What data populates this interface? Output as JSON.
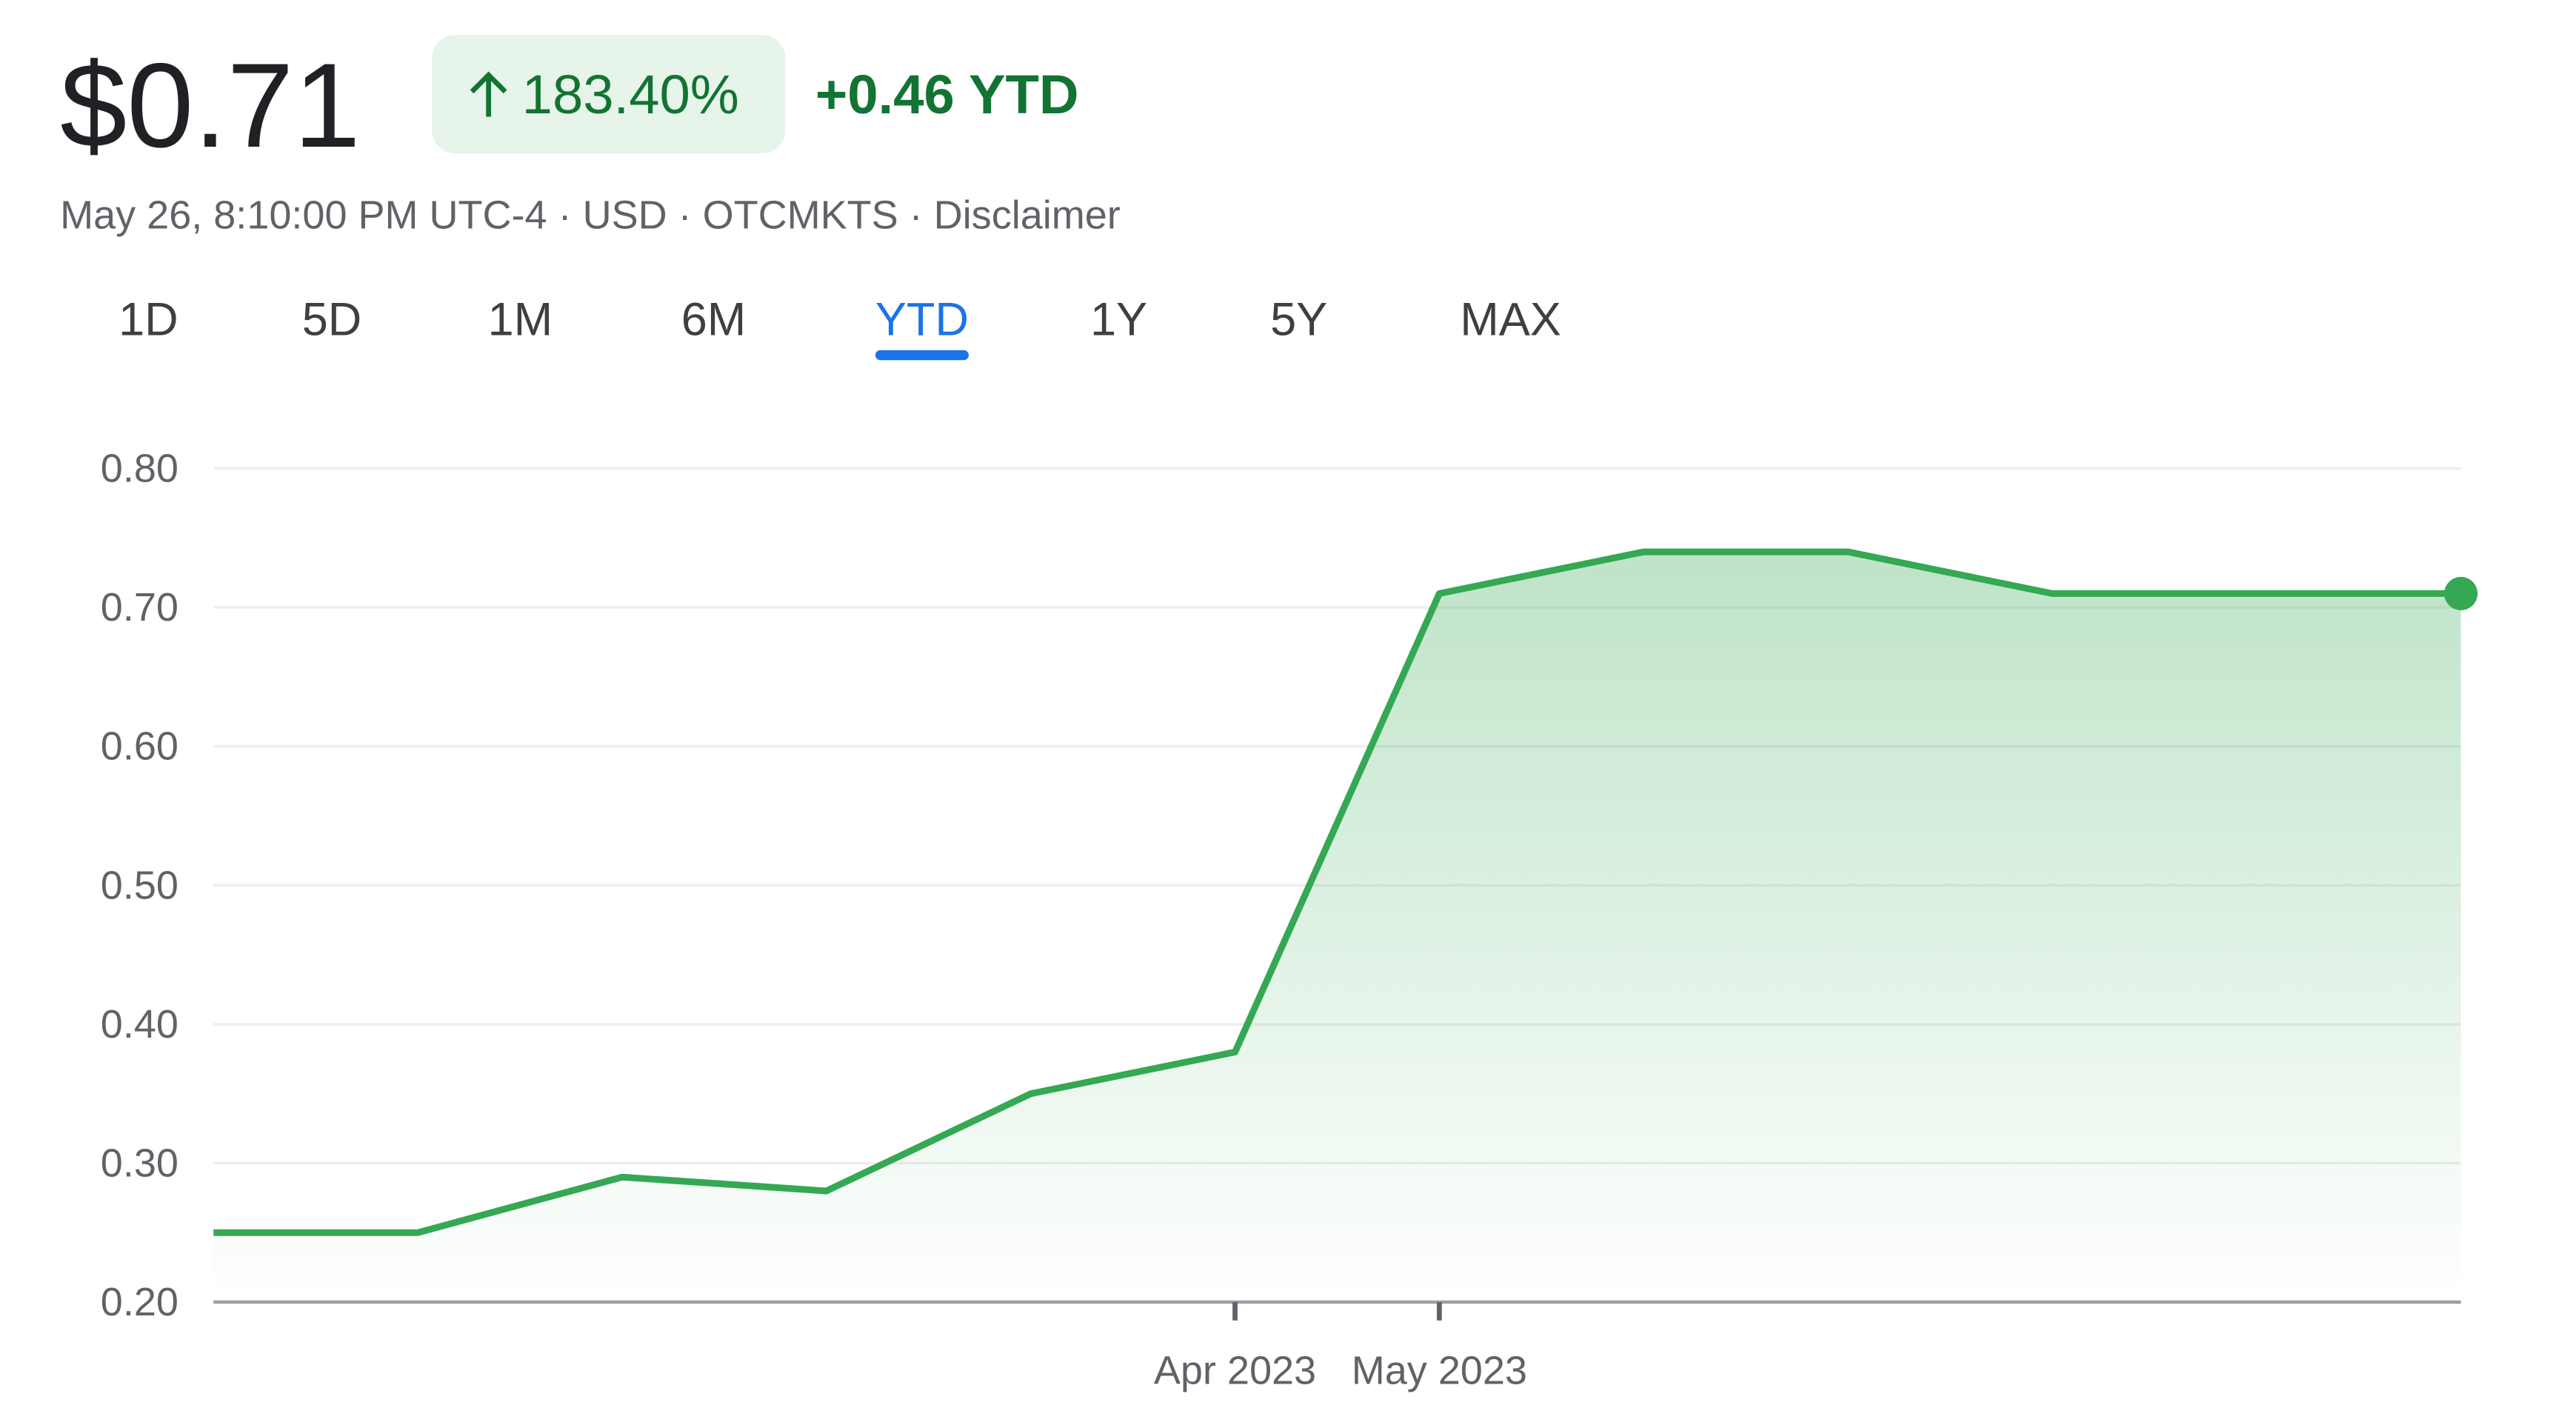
{
  "header": {
    "price": "$0.71",
    "change_percent": "183.40%",
    "change_ytd": "+0.46 YTD",
    "subtitle": "May 26, 8:10:00 PM UTC-4 · USD · OTCMKTS · Disclaimer"
  },
  "tabs": {
    "items": [
      "1D",
      "5D",
      "1M",
      "6M",
      "YTD",
      "1Y",
      "5Y",
      "MAX"
    ],
    "selected": "YTD"
  },
  "chart_data": {
    "type": "line",
    "categories": [
      null,
      null,
      null,
      null,
      null,
      "Apr 2023",
      "May 2023",
      null,
      null,
      null,
      null,
      null
    ],
    "values": [
      0.25,
      0.25,
      0.29,
      0.28,
      0.35,
      0.38,
      0.71,
      0.74,
      0.74,
      0.71,
      0.71,
      0.71
    ],
    "color": "#34a853",
    "ylim": [
      0.2,
      0.8
    ],
    "yticks": [
      {
        "value": 0.2,
        "label": "0.20"
      },
      {
        "value": 0.3,
        "label": "0.30"
      },
      {
        "value": 0.4,
        "label": "0.40"
      },
      {
        "value": 0.5,
        "label": "0.50"
      },
      {
        "value": 0.6,
        "label": "0.60"
      },
      {
        "value": 0.7,
        "label": "0.70"
      },
      {
        "value": 0.8,
        "label": "0.80"
      }
    ],
    "grid": true
  }
}
